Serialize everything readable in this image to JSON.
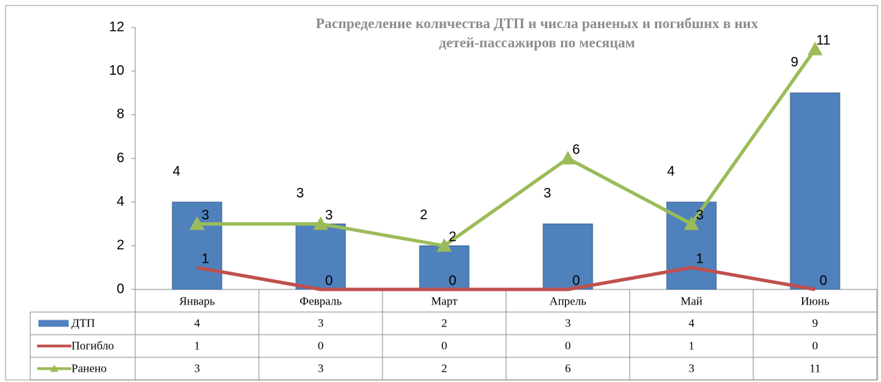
{
  "chart_data": {
    "type": "bar",
    "title": [
      "Распределение количества ДТП и числа раненых и погибших в них",
      "детей-пассажиров по месяцам"
    ],
    "categories": [
      "Январь",
      "Февраль",
      "Март",
      "Апрель",
      "Май",
      "Июнь"
    ],
    "series": [
      {
        "name": "ДТП",
        "type": "bar",
        "color": "#4f81bd",
        "values": [
          4,
          3,
          2,
          3,
          4,
          9
        ]
      },
      {
        "name": "Погибло",
        "type": "line",
        "color": "#c0504d",
        "values": [
          1,
          0,
          0,
          0,
          1,
          0
        ]
      },
      {
        "name": "Ранено",
        "type": "line",
        "color": "#9bbb59",
        "values": [
          3,
          3,
          2,
          6,
          3,
          11
        ]
      }
    ],
    "ylim": [
      0,
      12
    ],
    "yticks": [
      0,
      2,
      4,
      6,
      8,
      10,
      12
    ],
    "grid": false,
    "data_table": true
  }
}
